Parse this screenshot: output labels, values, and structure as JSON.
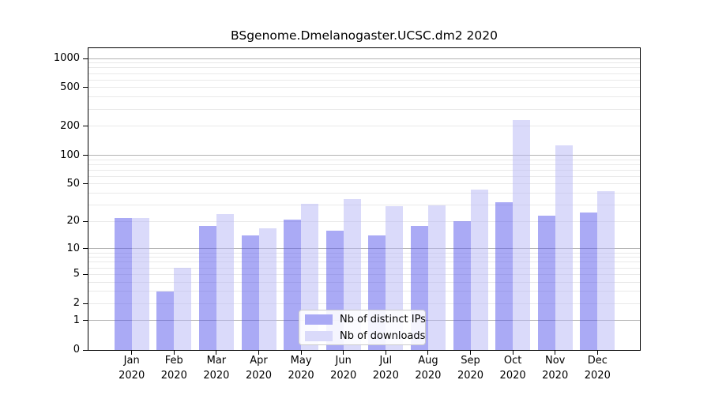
{
  "title": "BSgenome.Dmelanogaster.UCSC.dm2 2020",
  "chart_data": {
    "type": "bar",
    "title": "BSgenome.Dmelanogaster.UCSC.dm2 2020",
    "categories": [
      "Jan 2020",
      "Feb 2020",
      "Mar 2020",
      "Apr 2020",
      "May 2020",
      "Jun 2020",
      "Jul 2020",
      "Aug 2020",
      "Sep 2020",
      "Oct 2020",
      "Nov 2020",
      "Dec 2020"
    ],
    "series": [
      {
        "name": "Nb of distinct IPs",
        "color": "#aaaaf5",
        "fill": "rgba(85,85,235,0.5)",
        "values": [
          22,
          3,
          18,
          14,
          21,
          16,
          14,
          18,
          20,
          32,
          23,
          25
        ]
      },
      {
        "name": "Nb of downloads",
        "color": "#dadafa",
        "fill": "rgba(181,181,245,0.5)",
        "values": [
          22,
          6,
          24,
          17,
          31,
          35,
          29,
          30,
          44,
          230,
          126,
          42
        ]
      }
    ],
    "xlabel": "",
    "ylabel": "",
    "yticks": [
      0,
      1,
      2,
      5,
      10,
      20,
      50,
      100,
      200,
      500,
      1000
    ],
    "ylim": [
      0,
      1000
    ],
    "yscale": "log1p",
    "grid": {
      "major_values": [
        1,
        10,
        100,
        1000
      ],
      "major_color": "#b3b3b3",
      "minor_color": "#e9e9e9"
    },
    "legend_position": "lower-center-inside"
  }
}
